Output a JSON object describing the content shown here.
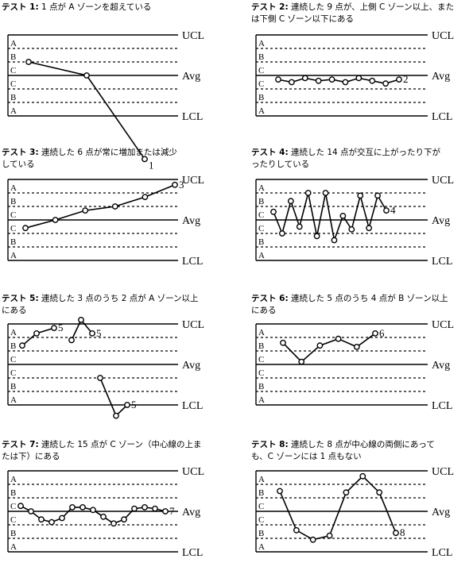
{
  "line_labels": {
    "ucl": "UCL",
    "avg": "Avg",
    "lcl": "LCL"
  },
  "zone_labels": [
    "A",
    "B",
    "C",
    "C",
    "B",
    "A"
  ],
  "tests": [
    {
      "heading": "テスト 1:",
      "text": "1 点が A ゾーンを超えている",
      "segments": [
        [
          2,
          3,
          9.2
        ]
      ],
      "points": [],
      "labels": [
        {
          "text": "1",
          "near_index": 2
        }
      ]
    },
    {
      "heading": "テスト 2:",
      "text": "連続した 9 点が、上側 C ゾーン以上、または下側 C ゾーン以下にある",
      "segments": [
        [
          3.3,
          3.5,
          3.2,
          3.4,
          3.3,
          3.5,
          3.2,
          3.4,
          3.6,
          3.3
        ]
      ],
      "points": [],
      "labels": [
        {
          "text": "2",
          "near_index": 9
        }
      ]
    },
    {
      "heading": "テスト 3:",
      "text": "連続した 6 点が常に増加または減少している",
      "segments": [
        [
          3.6,
          3.0,
          2.3,
          2.0,
          1.3,
          0.4
        ]
      ],
      "points": [],
      "labels": [
        {
          "text": "3",
          "near_index": 5
        }
      ]
    },
    {
      "heading": "テスト 4:",
      "text": "連続した 14 点が交互に上がったり下がったりしている",
      "segments": [
        [
          2.4,
          4.0,
          1.6,
          3.5,
          1.0,
          4.2,
          1.0,
          4.5,
          2.7,
          3.7,
          1.2,
          3.6,
          1.2,
          2.3
        ]
      ],
      "points": [],
      "labels": [
        {
          "text": "4",
          "near_index": 13
        }
      ]
    },
    {
      "heading": "テスト 5:",
      "text": "連続した 3 点のうち 2 点が A ゾーン以上にある",
      "segments": [
        [
          1.6,
          0.7,
          0.3
        ],
        [
          1.2,
          -0.3,
          0.7
        ],
        [
          4.0,
          6.8,
          6.0
        ]
      ],
      "points": [],
      "labels": [
        {
          "text": "5",
          "near_segment": 0
        },
        {
          "text": "5",
          "near_segment": 1
        },
        {
          "text": "5",
          "near_segment": 2
        }
      ]
    },
    {
      "heading": "テスト 6:",
      "text": "連続した 5 点のうち 4 点が B ゾーン以上にある",
      "segments": [
        [
          1.4,
          2.8,
          1.6,
          1.1,
          1.7,
          0.7
        ]
      ],
      "points": [],
      "labels": [
        {
          "text": "6",
          "near_index": 5
        }
      ]
    },
    {
      "heading": "テスト 7:",
      "text": "連続した 15 点が C ゾーン（中心線の上または下）にある",
      "segments": [
        [
          2.6,
          3.0,
          3.6,
          3.8,
          3.5,
          2.7,
          2.7,
          2.9,
          3.4,
          3.9,
          3.6,
          2.8,
          2.7,
          2.8,
          3.0
        ]
      ],
      "points": [],
      "labels": [
        {
          "text": "7",
          "near_index": 14
        }
      ]
    },
    {
      "heading": "テスト 8:",
      "text": "連続した 8 点が中心線の両側にあっても、C ゾーンには 1 点もない",
      "segments": [
        [
          1.5,
          4.4,
          5.1,
          4.8,
          1.6,
          0.4,
          1.6,
          4.6
        ]
      ],
      "points": [],
      "labels": [
        {
          "text": "8",
          "near_index": 7
        }
      ]
    }
  ]
}
